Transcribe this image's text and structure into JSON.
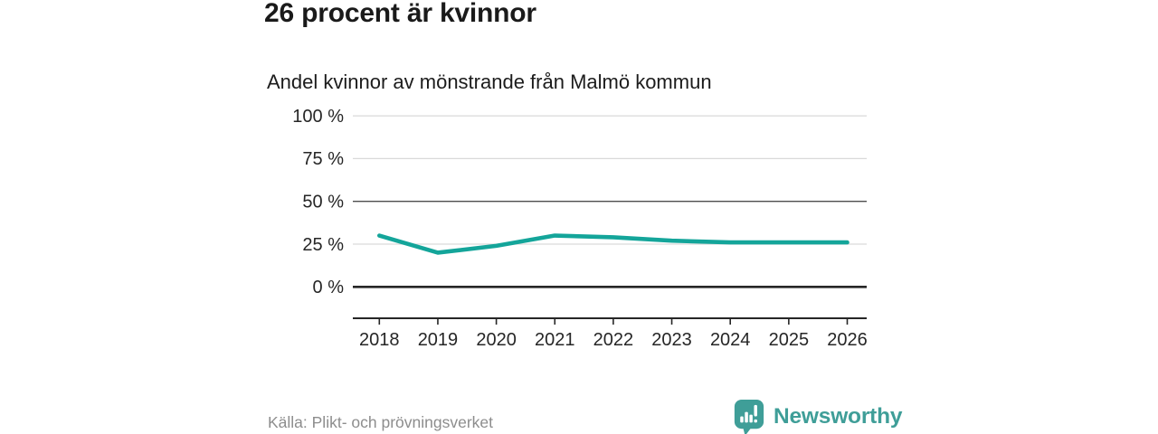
{
  "header": {
    "note": ""
  },
  "chart_data": {
    "type": "line",
    "title": "26 procent är kvinnor",
    "subtitle": "Andel kvinnor av mönstrande från Malmö kommun",
    "x": [
      "2018",
      "2019",
      "2020",
      "2021",
      "2022",
      "2023",
      "2024",
      "2025",
      "2026"
    ],
    "series": [
      {
        "name": "Andel kvinnor av mönstrande",
        "values": [
          30,
          20,
          24,
          30,
          29,
          27,
          26,
          26,
          26
        ],
        "color": "#14a59a"
      }
    ],
    "xlabel": "",
    "ylabel": "",
    "ylim": [
      0,
      100
    ],
    "yticks": [
      0,
      25,
      50,
      75,
      100
    ],
    "ytick_suffix": " %",
    "grid": true,
    "legend": "none"
  },
  "footer": {
    "source": "Källa: Plikt- och prövningsverket",
    "brand": "Newsworthy"
  },
  "colors": {
    "line_teal": "#14a59a",
    "brand_teal": "#3f9e98",
    "title_text": "#1a1a1a",
    "axis_text": "#262626",
    "muted_text": "#8d8d8d",
    "gridline_light": "#d9d9d9"
  }
}
